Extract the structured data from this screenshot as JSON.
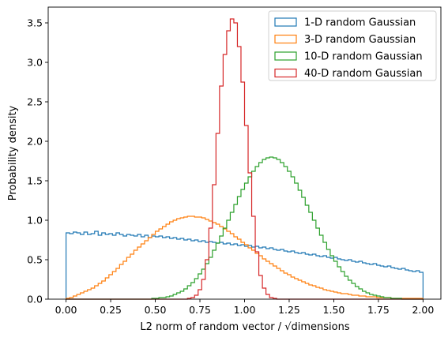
{
  "chart_data": {
    "type": "histogram",
    "title": "",
    "xlabel": "L2 norm of random vector / √dimensions",
    "ylabel": "Probability density",
    "xlim": [
      -0.1,
      2.1
    ],
    "ylim": [
      0,
      3.7
    ],
    "xticks": [
      "0.00",
      "0.25",
      "0.50",
      "0.75",
      "1.00",
      "1.25",
      "1.50",
      "1.75",
      "2.00"
    ],
    "yticks": [
      "0.0",
      "0.5",
      "1.0",
      "1.5",
      "2.0",
      "2.5",
      "3.0",
      "3.5"
    ],
    "grid": false,
    "legend_position": "upper right",
    "bin_start": 0.0,
    "bin_width": 0.02,
    "series": [
      {
        "name": "1-D random Gaussian",
        "color": "#1f77b4",
        "density": [
          0.84,
          0.83,
          0.85,
          0.84,
          0.82,
          0.85,
          0.82,
          0.83,
          0.86,
          0.81,
          0.84,
          0.82,
          0.83,
          0.81,
          0.84,
          0.82,
          0.8,
          0.82,
          0.81,
          0.8,
          0.82,
          0.79,
          0.81,
          0.78,
          0.8,
          0.79,
          0.8,
          0.78,
          0.79,
          0.77,
          0.78,
          0.76,
          0.77,
          0.75,
          0.76,
          0.74,
          0.75,
          0.73,
          0.74,
          0.72,
          0.73,
          0.72,
          0.71,
          0.72,
          0.7,
          0.71,
          0.69,
          0.7,
          0.68,
          0.69,
          0.67,
          0.68,
          0.66,
          0.67,
          0.65,
          0.66,
          0.64,
          0.65,
          0.63,
          0.62,
          0.63,
          0.61,
          0.6,
          0.61,
          0.59,
          0.58,
          0.59,
          0.57,
          0.56,
          0.57,
          0.55,
          0.54,
          0.55,
          0.53,
          0.52,
          0.53,
          0.51,
          0.5,
          0.49,
          0.5,
          0.48,
          0.47,
          0.48,
          0.46,
          0.45,
          0.44,
          0.45,
          0.43,
          0.42,
          0.41,
          0.42,
          0.4,
          0.39,
          0.38,
          0.39,
          0.37,
          0.36,
          0.35,
          0.36,
          0.34
        ]
      },
      {
        "name": "3-D random Gaussian",
        "color": "#ff7f0e",
        "density": [
          0.01,
          0.02,
          0.04,
          0.06,
          0.08,
          0.1,
          0.12,
          0.14,
          0.17,
          0.2,
          0.23,
          0.27,
          0.31,
          0.35,
          0.39,
          0.44,
          0.48,
          0.53,
          0.57,
          0.62,
          0.66,
          0.7,
          0.74,
          0.78,
          0.82,
          0.86,
          0.89,
          0.92,
          0.95,
          0.98,
          1.0,
          1.02,
          1.03,
          1.04,
          1.05,
          1.05,
          1.04,
          1.04,
          1.03,
          1.01,
          0.99,
          0.97,
          0.95,
          0.92,
          0.89,
          0.86,
          0.83,
          0.79,
          0.76,
          0.72,
          0.69,
          0.65,
          0.62,
          0.58,
          0.55,
          0.51,
          0.48,
          0.45,
          0.42,
          0.39,
          0.36,
          0.33,
          0.31,
          0.28,
          0.26,
          0.24,
          0.22,
          0.2,
          0.18,
          0.17,
          0.15,
          0.14,
          0.12,
          0.11,
          0.1,
          0.09,
          0.08,
          0.07,
          0.07,
          0.06,
          0.05,
          0.05,
          0.04,
          0.04,
          0.03,
          0.03,
          0.03,
          0.02,
          0.02,
          0.02,
          0.02,
          0.01,
          0.01,
          0.01,
          0.01,
          0.01,
          0.01,
          0.01,
          0.01,
          0.01
        ]
      },
      {
        "name": "10-D random Gaussian",
        "color": "#2ca02c",
        "density": [
          0,
          0,
          0,
          0,
          0,
          0,
          0,
          0,
          0,
          0,
          0,
          0,
          0,
          0,
          0,
          0,
          0,
          0,
          0,
          0,
          0,
          0,
          0,
          0,
          0.01,
          0.01,
          0.02,
          0.02,
          0.03,
          0.04,
          0.06,
          0.08,
          0.1,
          0.13,
          0.17,
          0.21,
          0.26,
          0.32,
          0.38,
          0.45,
          0.53,
          0.62,
          0.71,
          0.8,
          0.9,
          1.0,
          1.1,
          1.2,
          1.3,
          1.39,
          1.47,
          1.55,
          1.62,
          1.68,
          1.73,
          1.77,
          1.79,
          1.8,
          1.79,
          1.77,
          1.73,
          1.68,
          1.62,
          1.55,
          1.47,
          1.38,
          1.29,
          1.19,
          1.1,
          1.0,
          0.9,
          0.81,
          0.72,
          0.63,
          0.55,
          0.48,
          0.41,
          0.35,
          0.29,
          0.24,
          0.2,
          0.16,
          0.13,
          0.1,
          0.08,
          0.06,
          0.05,
          0.04,
          0.03,
          0.02,
          0.02,
          0.01,
          0.01,
          0.01,
          0,
          0,
          0,
          0,
          0,
          0
        ]
      },
      {
        "name": "40-D random Gaussian",
        "color": "#d62728",
        "density": [
          0,
          0,
          0,
          0,
          0,
          0,
          0,
          0,
          0,
          0,
          0,
          0,
          0,
          0,
          0,
          0,
          0,
          0,
          0,
          0,
          0,
          0,
          0,
          0,
          0,
          0,
          0,
          0,
          0,
          0,
          0,
          0,
          0,
          0,
          0.01,
          0.02,
          0.05,
          0.12,
          0.25,
          0.5,
          0.9,
          1.45,
          2.1,
          2.7,
          3.1,
          3.4,
          3.55,
          3.5,
          3.2,
          2.75,
          2.2,
          1.6,
          1.05,
          0.6,
          0.3,
          0.14,
          0.06,
          0.02,
          0.01,
          0,
          0,
          0,
          0,
          0,
          0,
          0,
          0,
          0,
          0,
          0,
          0,
          0,
          0,
          0,
          0,
          0,
          0,
          0,
          0,
          0,
          0,
          0,
          0,
          0,
          0,
          0,
          0,
          0,
          0,
          0,
          0,
          0,
          0,
          0,
          0,
          0,
          0,
          0,
          0,
          0
        ]
      }
    ]
  }
}
